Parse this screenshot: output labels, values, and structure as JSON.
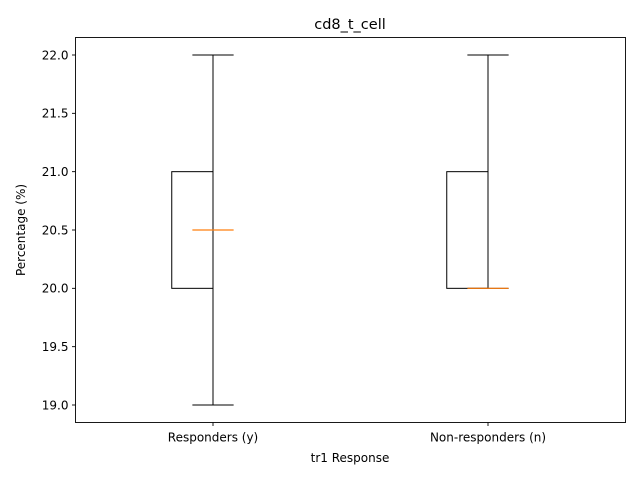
{
  "chart_data": {
    "type": "box",
    "title": "cd8_t_cell",
    "xlabel": "tr1 Response",
    "ylabel": "Percentage (%)",
    "ylim": [
      18.85,
      22.15
    ],
    "yticks": [
      "19.0",
      "19.5",
      "20.0",
      "20.5",
      "21.0",
      "21.5",
      "22.0"
    ],
    "grid": false,
    "categories": [
      "Responders (y)",
      "Non-responders (n)"
    ],
    "boxes": [
      {
        "name": "Responders (y)",
        "whisker_low": 19.0,
        "q1": 20.0,
        "median": 20.5,
        "q3": 21.0,
        "whisker_high": 22.0
      },
      {
        "name": "Non-responders (n)",
        "whisker_low": 20.0,
        "q1": 20.0,
        "median": 20.0,
        "q3": 21.0,
        "whisker_high": 22.0
      }
    ],
    "colors": {
      "box": "#000000",
      "median": "#ff7f0e"
    }
  }
}
